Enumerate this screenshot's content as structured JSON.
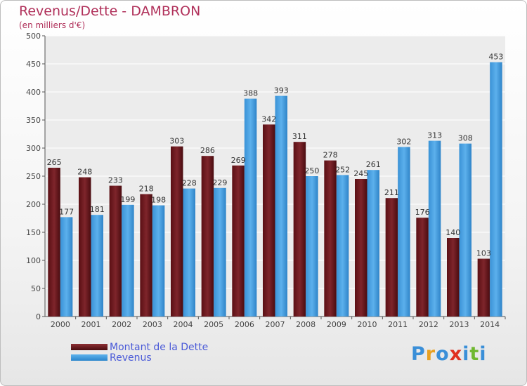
{
  "title": "Revenus/Dette - DAMBRON",
  "subtitle": "(en milliers d'€)",
  "legend": {
    "debt_label": "Montant de la Dette",
    "revenue_label": "Revenus"
  },
  "logo": {
    "text": "Proxiti",
    "letters": [
      "P",
      "r",
      "o",
      "x",
      "i",
      "t",
      "i"
    ],
    "colors": [
      "#3a8fd8",
      "#e8a020",
      "#3a8fd8",
      "#e03020",
      "#3a8fd8",
      "#70b830",
      "#3a8fd8"
    ]
  },
  "colors": {
    "debt": "#6e1a20",
    "revenue": "#4aa3e6",
    "title": "#b0305a"
  },
  "chart_data": {
    "type": "bar",
    "title": "Revenus/Dette - DAMBRON",
    "ylabel": "(en milliers d'€)",
    "xlabel": "",
    "categories": [
      "2000",
      "2001",
      "2002",
      "2003",
      "2004",
      "2005",
      "2006",
      "2007",
      "2008",
      "2009",
      "2010",
      "2011",
      "2012",
      "2013",
      "2014"
    ],
    "series": [
      {
        "name": "Montant de la Dette",
        "values": [
          265,
          248,
          233,
          218,
          303,
          286,
          269,
          342,
          311,
          278,
          245,
          211,
          176,
          140,
          103
        ]
      },
      {
        "name": "Revenus",
        "values": [
          177,
          181,
          199,
          198,
          228,
          229,
          388,
          393,
          250,
          252,
          261,
          302,
          313,
          308,
          453
        ]
      }
    ],
    "ylim": [
      0,
      500
    ],
    "yticks": [
      0,
      50,
      100,
      150,
      200,
      250,
      300,
      350,
      400,
      450,
      500
    ],
    "grid": true,
    "legend_position": "bottom-left"
  }
}
